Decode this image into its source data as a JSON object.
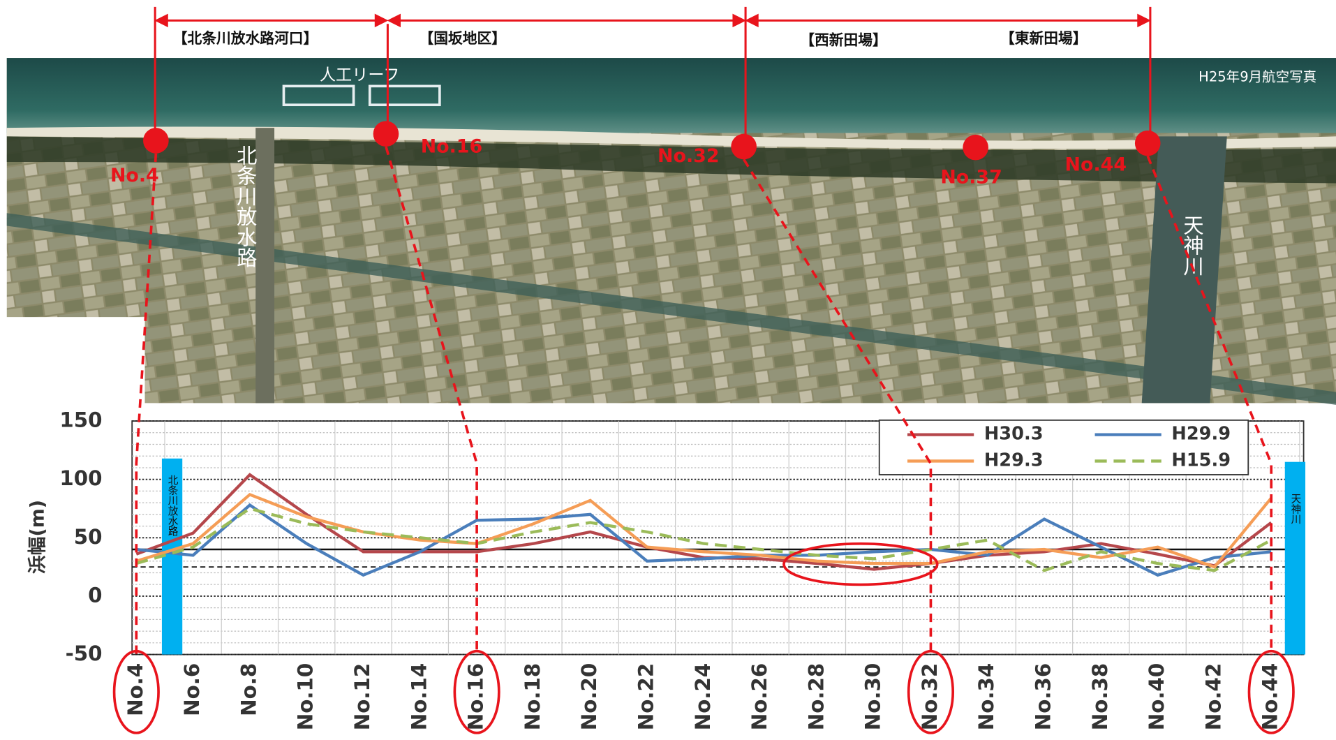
{
  "chart_data": {
    "type": "line",
    "y_label": "浜幅(m)",
    "categories": [
      "No.4",
      "No.6",
      "No.8",
      "No.10",
      "No.12",
      "No.14",
      "No.16",
      "No.18",
      "No.20",
      "No.22",
      "No.24",
      "No.26",
      "No.28",
      "No.30",
      "No.32",
      "No.34",
      "No.36",
      "No.38",
      "No.40",
      "No.42",
      "No.44"
    ],
    "series": [
      {
        "name": "H30.3",
        "color": "#b5474b",
        "dash": false,
        "values": [
          36,
          54,
          104,
          70,
          38,
          38,
          38,
          45,
          55,
          42,
          33,
          32,
          28,
          23,
          28,
          35,
          38,
          45,
          36,
          26,
          63
        ]
      },
      {
        "name": "H29.9",
        "color": "#4a7ebb",
        "dash": false,
        "values": [
          40,
          35,
          78,
          45,
          18,
          38,
          65,
          66,
          70,
          30,
          32,
          35,
          35,
          38,
          40,
          35,
          66,
          42,
          18,
          33,
          38
        ]
      },
      {
        "name": "H29.3",
        "color": "#f59d56",
        "dash": false,
        "values": [
          30,
          45,
          87,
          68,
          55,
          48,
          45,
          62,
          82,
          42,
          38,
          35,
          30,
          28,
          28,
          38,
          40,
          33,
          42,
          25,
          84
        ]
      },
      {
        "name": "H15.9",
        "color": "#9bbb59",
        "dash": true,
        "values": [
          28,
          42,
          75,
          62,
          55,
          50,
          45,
          55,
          63,
          55,
          45,
          40,
          35,
          32,
          40,
          48,
          22,
          38,
          28,
          22,
          48
        ]
      }
    ],
    "ylim": [
      -50,
      150
    ],
    "yticks": [
      -50,
      0,
      50,
      100,
      150
    ],
    "grid": true,
    "minor_grid_step": 10,
    "reference_lines": [
      40,
      25
    ],
    "legend": "top-right",
    "side_bars": [
      {
        "label": "北条川放水路",
        "color": "#00b0f0"
      },
      {
        "label": "天神川",
        "color": "#00b0f0"
      }
    ]
  },
  "photo": {
    "caption": "H25年9月航空写真",
    "reef_label": "人工リーフ",
    "river_labels": [
      "北条川放水路",
      "天神川"
    ],
    "sections": [
      "【北条川放水路河口】",
      "【国坂地区】",
      "【西新田場】",
      "【東新田場】"
    ],
    "points": [
      "No.4",
      "No.16",
      "No.32",
      "No.37",
      "No.44"
    ]
  }
}
